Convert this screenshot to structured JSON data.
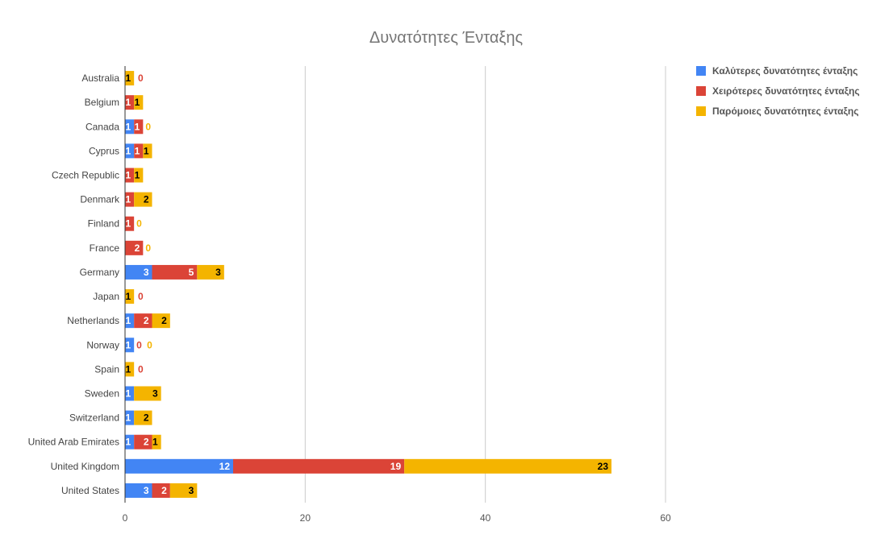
{
  "chart_data": {
    "type": "bar",
    "orientation": "horizontal",
    "stacked": true,
    "title": "Δυνατότητες Ένταξης",
    "xlabel": "",
    "ylabel": "",
    "xlim": [
      0,
      60
    ],
    "xticks": [
      0,
      20,
      40,
      60
    ],
    "grid": true,
    "legend_position": "right",
    "categories": [
      "Australia",
      "Belgium",
      "Canada",
      "Cyprus",
      "Czech Republic",
      "Denmark",
      "Finland",
      "France",
      "Germany",
      "Japan",
      "Netherlands",
      "Norway",
      "Spain",
      "Sweden",
      "Switzerland",
      "United Arab Emirates",
      "United Kingdom",
      "United States"
    ],
    "series": [
      {
        "name": "Καλύτερες δυνατότητες ένταξης",
        "color": "#4285f4",
        "values": [
          0,
          0,
          1,
          1,
          0,
          0,
          0,
          0,
          3,
          0,
          1,
          1,
          0,
          1,
          1,
          1,
          12,
          3
        ]
      },
      {
        "name": "Χειρότερες δυνατότητες ένταξης",
        "color": "#db4437",
        "values": [
          0,
          1,
          1,
          1,
          1,
          1,
          1,
          2,
          5,
          0,
          2,
          0,
          0,
          0,
          0,
          2,
          19,
          2
        ]
      },
      {
        "name": "Παρόμοιες δυνατότητες ένταξης",
        "color": "#f4b400",
        "values": [
          1,
          1,
          0,
          1,
          1,
          2,
          0,
          0,
          3,
          1,
          2,
          0,
          1,
          3,
          2,
          1,
          23,
          3
        ]
      }
    ]
  }
}
